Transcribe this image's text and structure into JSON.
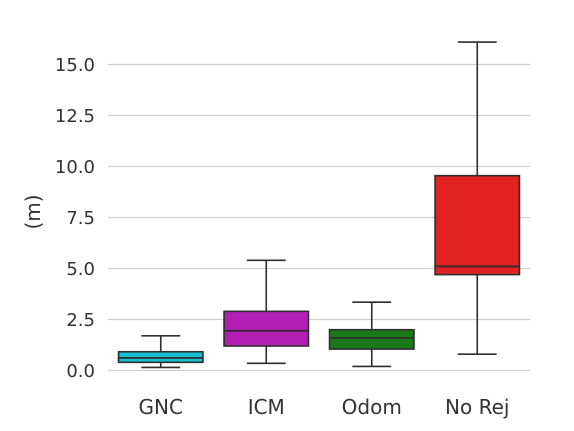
{
  "chart_data": {
    "type": "box",
    "title": "",
    "xlabel": "",
    "ylabel": "(m)",
    "ylim": [
      0,
      16.2
    ],
    "yticks": [
      "0.0",
      "2.5",
      "5.0",
      "7.5",
      "10.0",
      "12.5",
      "15.0"
    ],
    "ytick_values": [
      0,
      2.5,
      5,
      7.5,
      10,
      12.5,
      15
    ],
    "grid": true,
    "categories": [
      "GNC",
      "ICM",
      "Odom",
      "No Rej"
    ],
    "boxes": [
      {
        "whisker_low": 0.15,
        "q1": 0.4,
        "median": 0.62,
        "q3": 0.92,
        "whisker_high": 1.7,
        "color": "#17becf"
      },
      {
        "whisker_low": 0.35,
        "q1": 1.2,
        "median": 1.95,
        "q3": 2.9,
        "whisker_high": 5.4,
        "color": "#b31fb3"
      },
      {
        "whisker_low": 0.2,
        "q1": 1.05,
        "median": 1.6,
        "q3": 2.0,
        "whisker_high": 3.35,
        "color": "#1a7a1a"
      },
      {
        "whisker_low": 0.8,
        "q1": 4.7,
        "median": 5.1,
        "q3": 9.55,
        "whisker_high": 16.1,
        "color": "#e02222"
      }
    ]
  }
}
